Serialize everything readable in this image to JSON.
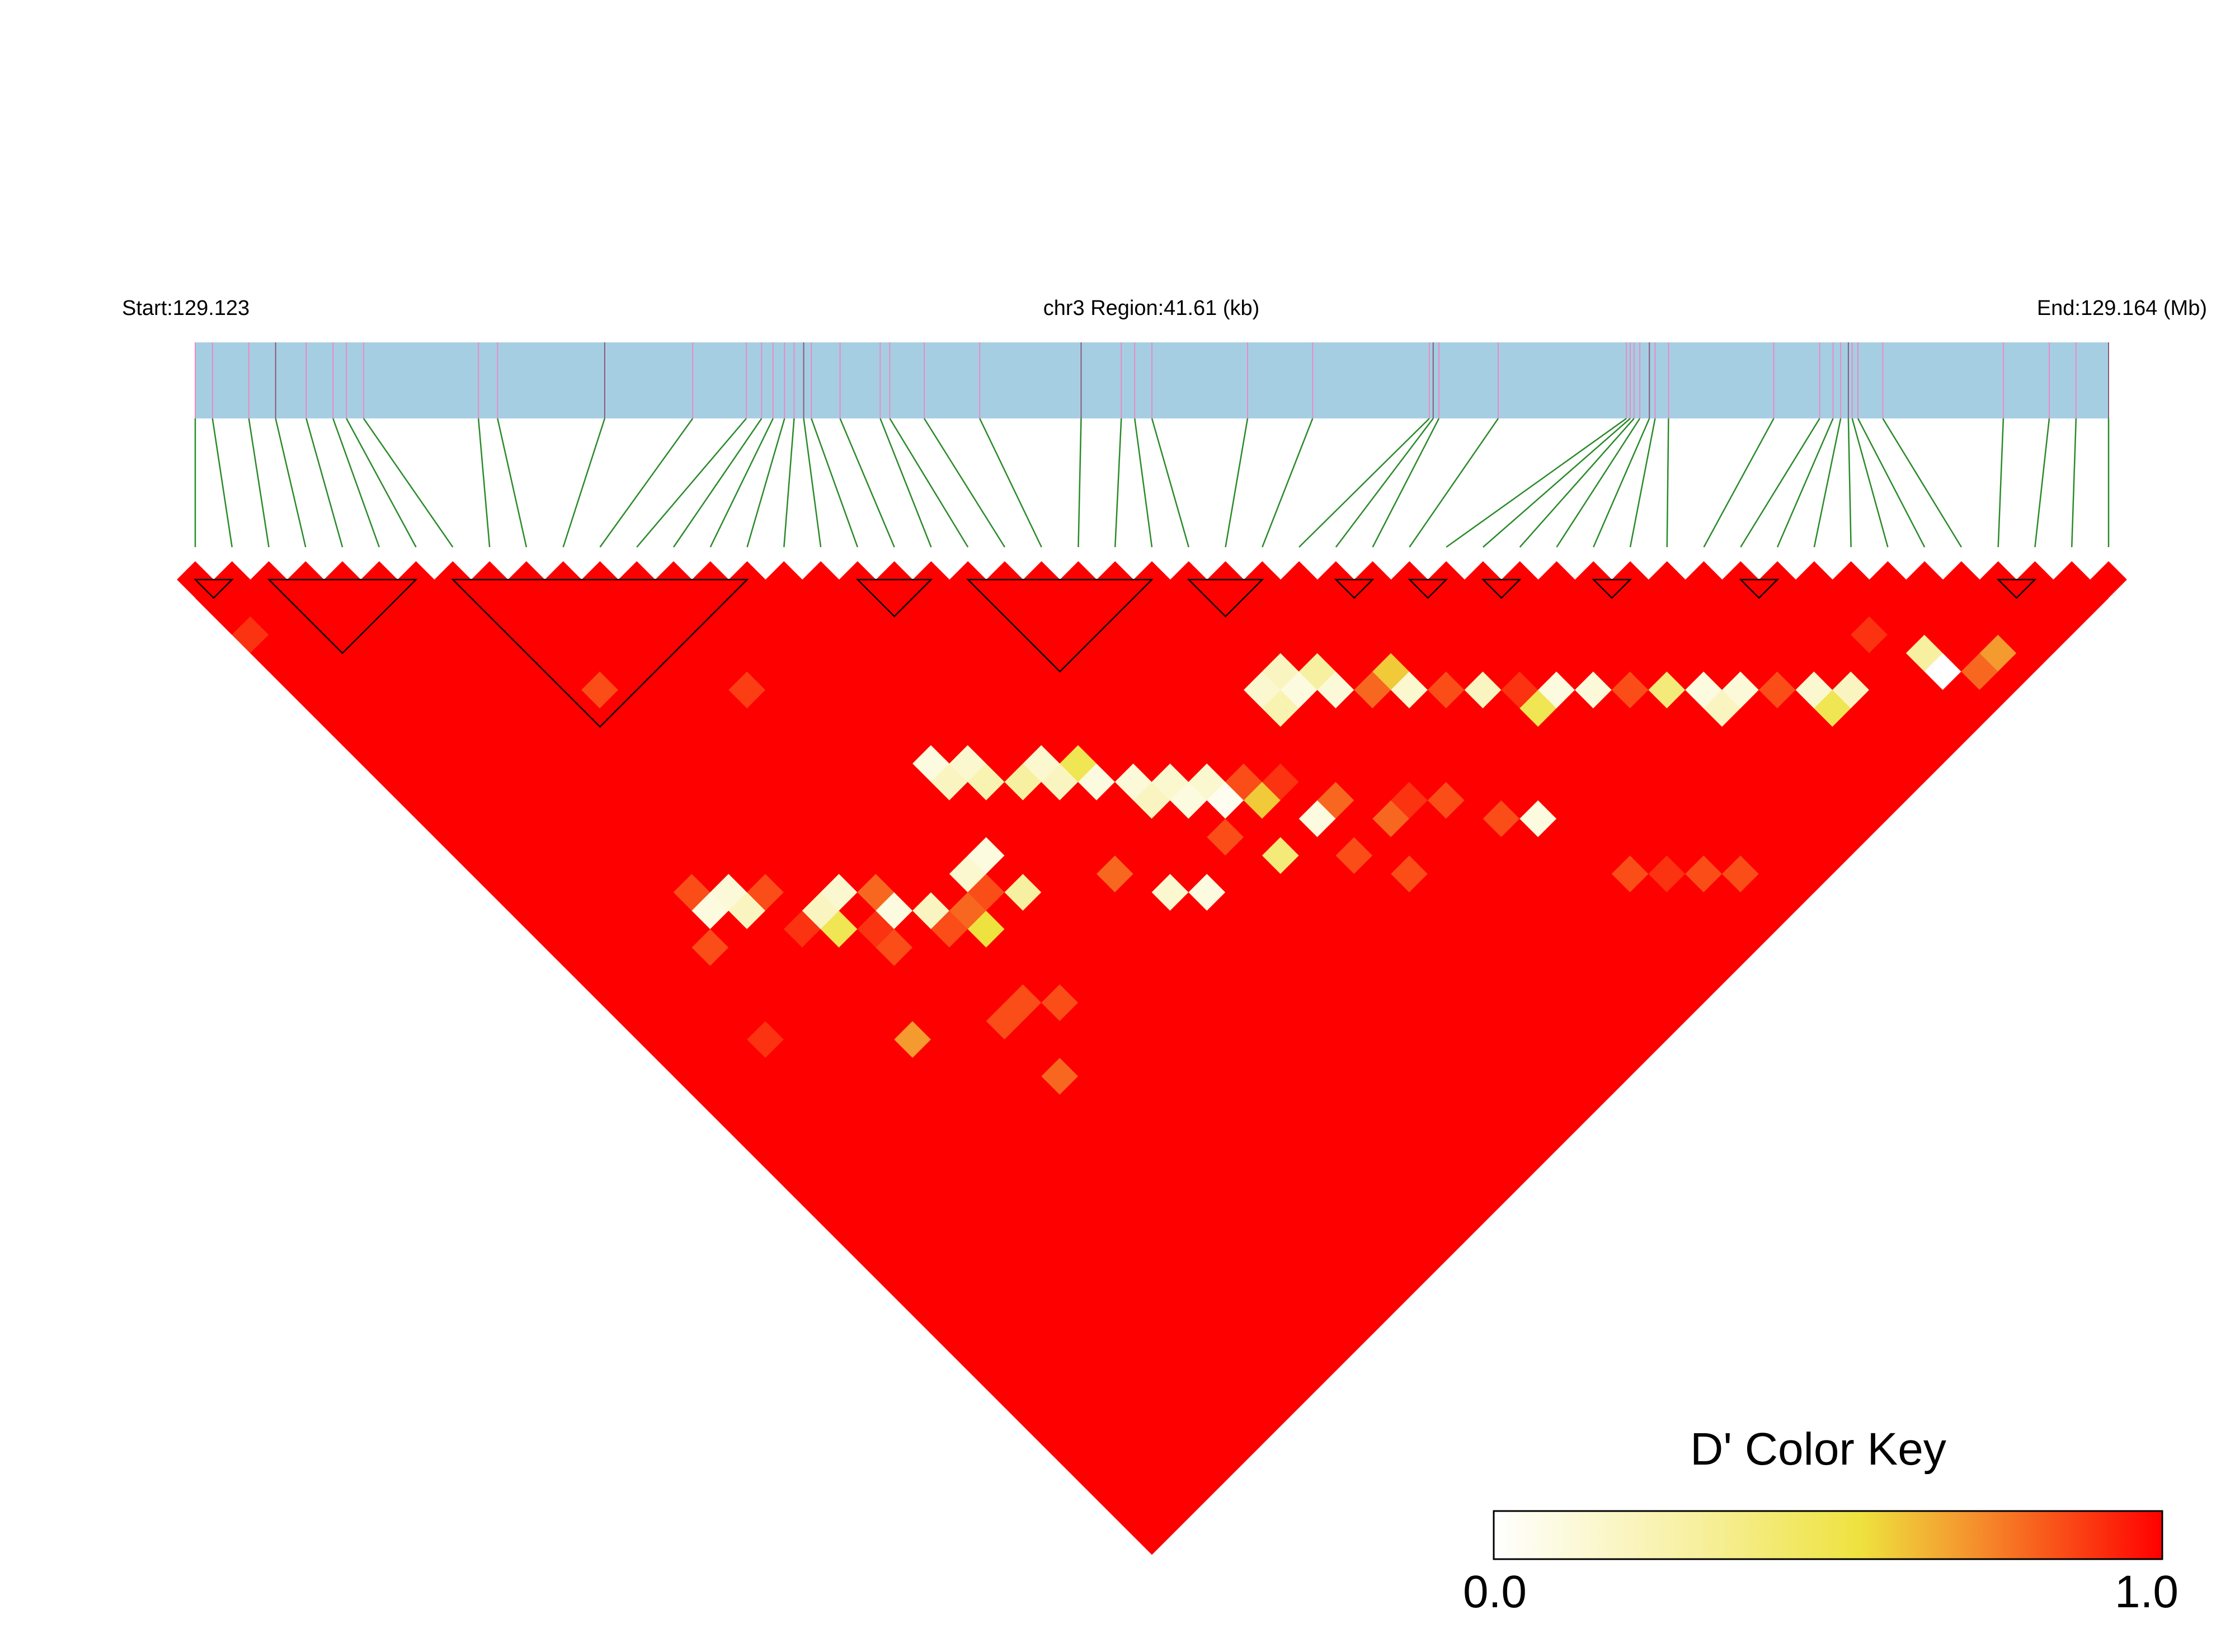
{
  "header": {
    "start_label": "Start:129.123",
    "region_label": "chr3 Region:41.61 (kb)",
    "end_label": "End:129.164 (Mb)"
  },
  "snp_count": 53,
  "marker_fractions": [
    0.0,
    0.009,
    0.028,
    0.042,
    0.058,
    0.072,
    0.079,
    0.088,
    0.148,
    0.158,
    0.214,
    0.26,
    0.288,
    0.296,
    0.302,
    0.308,
    0.313,
    0.318,
    0.322,
    0.337,
    0.358,
    0.363,
    0.381,
    0.41,
    0.463,
    0.484,
    0.491,
    0.5,
    0.55,
    0.584,
    0.645,
    0.647,
    0.65,
    0.681,
    0.748,
    0.75,
    0.752,
    0.755,
    0.76,
    0.763,
    0.77,
    0.825,
    0.849,
    0.856,
    0.86,
    0.864,
    0.866,
    0.869,
    0.882,
    0.945,
    0.969,
    0.983,
    1.0
  ],
  "ld_pattern": {
    "background_dprime": 1.0,
    "cells": [
      {
        "i": 0,
        "j": 3,
        "d": 0.9
      },
      {
        "i": 8,
        "j": 14,
        "d": 0.85
      },
      {
        "i": 12,
        "j": 18,
        "d": 0.88
      },
      {
        "i": 26,
        "j": 32,
        "d": 0.15
      },
      {
        "i": 27,
        "j": 33,
        "d": 0.1
      },
      {
        "i": 27,
        "j": 32,
        "d": 0.2
      },
      {
        "i": 28,
        "j": 34,
        "d": 0.12
      },
      {
        "i": 28,
        "j": 33,
        "d": 0.3
      },
      {
        "i": 26,
        "j": 33,
        "d": 0.25
      },
      {
        "i": 29,
        "j": 35,
        "d": 0.8
      },
      {
        "i": 30,
        "j": 36,
        "d": 0.15
      },
      {
        "i": 30,
        "j": 35,
        "d": 0.6
      },
      {
        "i": 31,
        "j": 37,
        "d": 0.85
      },
      {
        "i": 32,
        "j": 38,
        "d": 0.2
      },
      {
        "i": 33,
        "j": 39,
        "d": 0.9
      },
      {
        "i": 33,
        "j": 40,
        "d": 0.5
      },
      {
        "i": 34,
        "j": 40,
        "d": 0.1
      },
      {
        "i": 35,
        "j": 41,
        "d": 0.12
      },
      {
        "i": 36,
        "j": 42,
        "d": 0.85
      },
      {
        "i": 37,
        "j": 43,
        "d": 0.4
      },
      {
        "i": 38,
        "j": 44,
        "d": 0.1
      },
      {
        "i": 38,
        "j": 45,
        "d": 0.2
      },
      {
        "i": 39,
        "j": 45,
        "d": 0.12
      },
      {
        "i": 40,
        "j": 46,
        "d": 0.85
      },
      {
        "i": 41,
        "j": 47,
        "d": 0.15
      },
      {
        "i": 41,
        "j": 48,
        "d": 0.5
      },
      {
        "i": 42,
        "j": 48,
        "d": 0.2
      },
      {
        "i": 44,
        "j": 47,
        "d": 0.9
      },
      {
        "i": 45,
        "j": 50,
        "d": 0.0
      },
      {
        "i": 45,
        "j": 49,
        "d": 0.3
      },
      {
        "i": 46,
        "j": 51,
        "d": 0.8
      },
      {
        "i": 47,
        "j": 51,
        "d": 0.7
      },
      {
        "i": 20,
        "j": 31,
        "d": 0.12
      },
      {
        "i": 20,
        "j": 32,
        "d": 0.2
      },
      {
        "i": 21,
        "j": 32,
        "d": 0.15
      },
      {
        "i": 21,
        "j": 33,
        "d": 0.1
      },
      {
        "i": 22,
        "j": 33,
        "d": 0.15
      },
      {
        "i": 22,
        "j": 34,
        "d": 0.05
      },
      {
        "i": 19,
        "j": 30,
        "d": 0.1
      },
      {
        "i": 19,
        "j": 29,
        "d": 0.5
      },
      {
        "i": 18,
        "j": 29,
        "d": 0.2
      },
      {
        "i": 18,
        "j": 28,
        "d": 0.15
      },
      {
        "i": 17,
        "j": 28,
        "d": 0.3
      },
      {
        "i": 16,
        "j": 27,
        "d": 0.25
      },
      {
        "i": 16,
        "j": 26,
        "d": 0.15
      },
      {
        "i": 15,
        "j": 26,
        "d": 0.2
      },
      {
        "i": 15,
        "j": 25,
        "d": 0.1
      },
      {
        "i": 23,
        "j": 34,
        "d": 0.85
      },
      {
        "i": 24,
        "j": 35,
        "d": 0.9
      },
      {
        "i": 23,
        "j": 35,
        "d": 0.6
      },
      {
        "i": 25,
        "j": 37,
        "d": 0.8
      },
      {
        "i": 24,
        "j": 37,
        "d": 0.1
      },
      {
        "i": 21,
        "j": 35,
        "d": 0.85
      },
      {
        "i": 22,
        "j": 37,
        "d": 0.4
      },
      {
        "i": 19,
        "j": 36,
        "d": 0.1
      },
      {
        "i": 18,
        "j": 35,
        "d": 0.15
      },
      {
        "i": 17,
        "j": 33,
        "d": 0.8
      },
      {
        "i": 13,
        "j": 30,
        "d": 0.85
      },
      {
        "i": 14,
        "j": 31,
        "d": 0.3
      },
      {
        "i": 12,
        "j": 30,
        "d": 0.8
      },
      {
        "i": 12,
        "j": 31,
        "d": 0.55
      },
      {
        "i": 11,
        "j": 30,
        "d": 0.85
      },
      {
        "i": 11,
        "j": 29,
        "d": 0.2
      },
      {
        "i": 10,
        "j": 27,
        "d": 0.8
      },
      {
        "i": 9,
        "j": 26,
        "d": 0.15
      },
      {
        "i": 8,
        "j": 26,
        "d": 0.2
      },
      {
        "i": 10,
        "j": 28,
        "d": 0.1
      },
      {
        "i": 13,
        "j": 29,
        "d": 0.15
      },
      {
        "i": 14,
        "j": 29,
        "d": 0.1
      },
      {
        "i": 27,
        "j": 39,
        "d": 0.9
      },
      {
        "i": 28,
        "j": 40,
        "d": 0.85
      },
      {
        "i": 26,
        "j": 39,
        "d": 0.8
      },
      {
        "i": 29,
        "j": 42,
        "d": 0.85
      },
      {
        "i": 30,
        "j": 43,
        "d": 0.1
      },
      {
        "i": 25,
        "j": 41,
        "d": 0.85
      },
      {
        "i": 24,
        "j": 39,
        "d": 0.85
      },
      {
        "i": 33,
        "j": 49,
        "d": 0.85
      },
      {
        "i": 34,
        "j": 50,
        "d": 0.85
      },
      {
        "i": 31,
        "j": 47,
        "d": 0.85
      },
      {
        "i": 32,
        "j": 48,
        "d": 0.9
      },
      {
        "i": 10,
        "j": 34,
        "d": 0.85
      },
      {
        "i": 11,
        "j": 34,
        "d": 0.85
      },
      {
        "i": 4,
        "j": 24,
        "d": 0.85
      },
      {
        "i": 7,
        "j": 32,
        "d": 0.7
      },
      {
        "i": 10,
        "j": 37,
        "d": 0.8
      },
      {
        "i": 12,
        "j": 35,
        "d": 0.85
      },
      {
        "i": 5,
        "j": 23,
        "d": 0.1
      },
      {
        "i": 6,
        "j": 23,
        "d": 0.12
      },
      {
        "i": 6,
        "j": 24,
        "d": 0.2
      },
      {
        "i": 7,
        "j": 24,
        "d": 0.85
      },
      {
        "i": 5,
        "j": 22,
        "d": 0.85
      },
      {
        "i": 8,
        "j": 27,
        "d": 0.5
      },
      {
        "i": 9,
        "j": 28,
        "d": 0.9
      },
      {
        "i": 7,
        "j": 26,
        "d": 0.9
      },
      {
        "i": 3,
        "j": 28,
        "d": 0.9
      },
      {
        "i": 9,
        "j": 29,
        "d": 0.85
      }
    ],
    "block_ranges": [
      [
        0,
        1
      ],
      [
        2,
        6
      ],
      [
        7,
        15
      ],
      [
        18,
        20
      ],
      [
        21,
        26
      ],
      [
        27,
        29
      ],
      [
        31,
        32
      ],
      [
        33,
        34
      ],
      [
        35,
        36
      ],
      [
        38,
        39
      ],
      [
        42,
        43
      ],
      [
        49,
        50
      ]
    ]
  },
  "color_key": {
    "title": "D' Color Key",
    "min_label": "0.0",
    "max_label": "1.0",
    "stops": [
      "#ffffff",
      "#f7f0a0",
      "#eee23e",
      "#f49a2f",
      "#ff0000"
    ]
  }
}
